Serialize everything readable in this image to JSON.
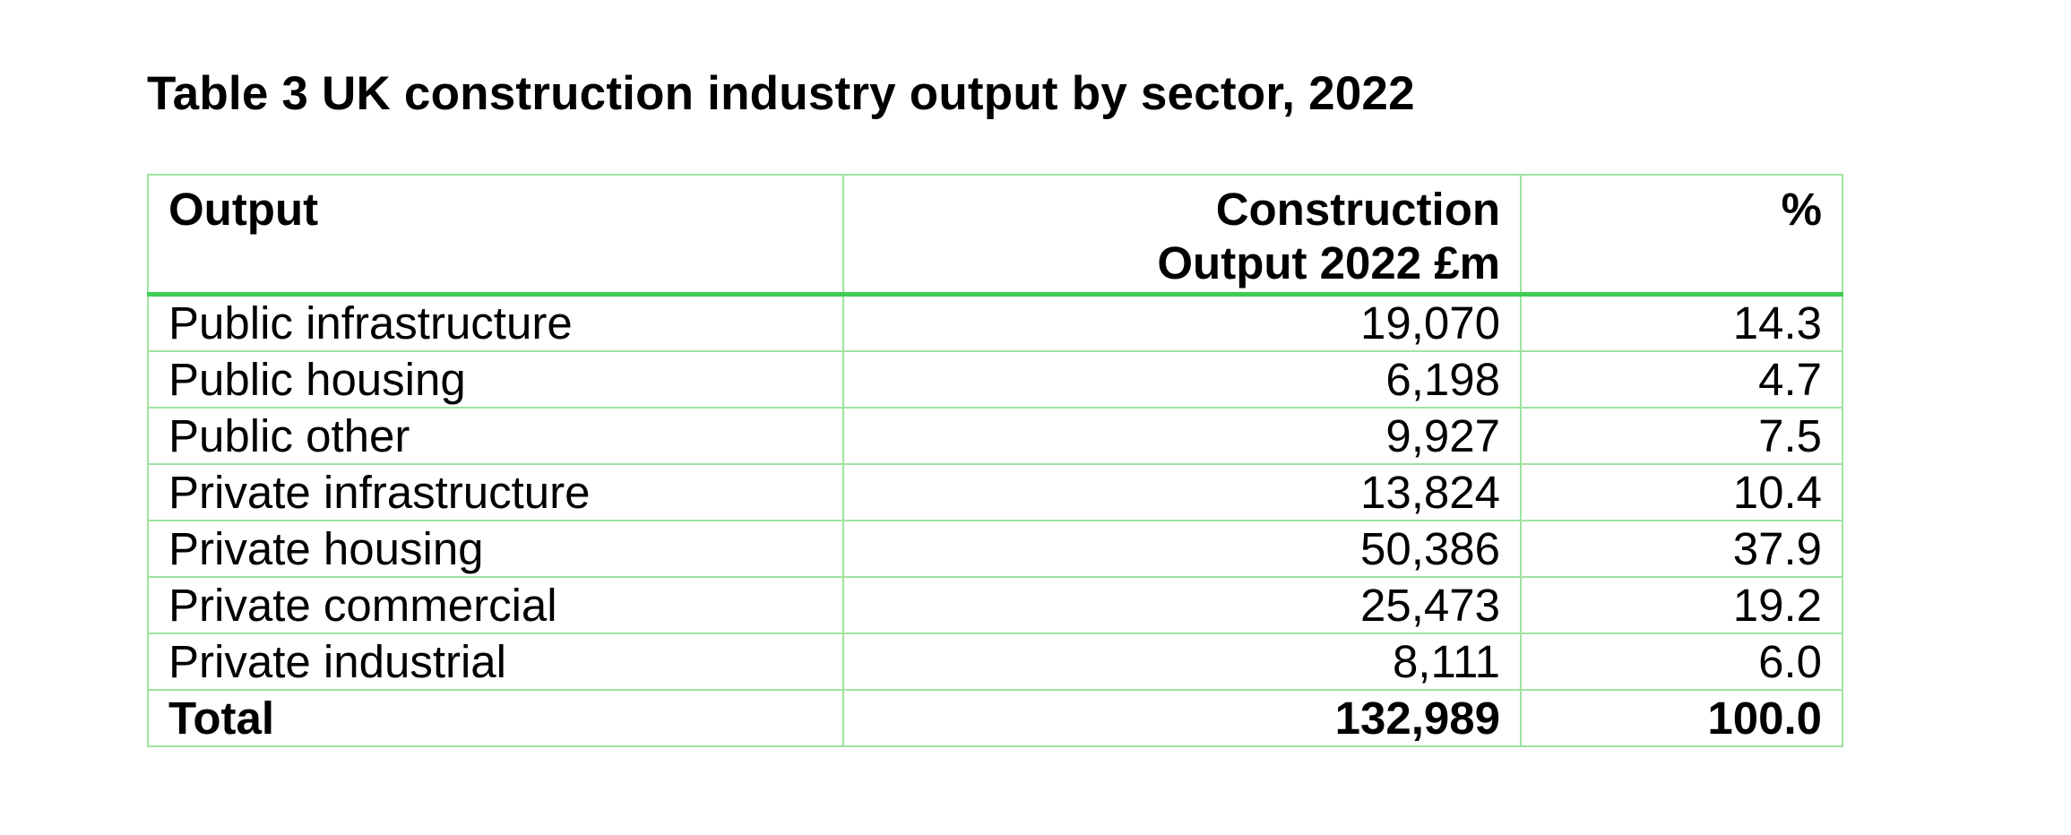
{
  "title": "Table 3 UK construction industry output by sector, 2022",
  "table": {
    "headers": {
      "output": "Output",
      "construction_line1": "Construction",
      "construction_line2": "Output 2022 £m",
      "percent": "%"
    },
    "rows": [
      {
        "label": "Public infrastructure",
        "value": "19,070",
        "percent": "14.3"
      },
      {
        "label": "Public housing",
        "value": "6,198",
        "percent": "4.7"
      },
      {
        "label": "Public other",
        "value": "9,927",
        "percent": "7.5"
      },
      {
        "label": "Private infrastructure",
        "value": "13,824",
        "percent": "10.4"
      },
      {
        "label": "Private housing",
        "value": "50,386",
        "percent": "37.9"
      },
      {
        "label": "Private commercial",
        "value": "25,473",
        "percent": "19.2"
      },
      {
        "label": "Private industrial",
        "value": "8,111",
        "percent": "6.0"
      }
    ],
    "total": {
      "label": "Total",
      "value": "132,989",
      "percent": "100.0"
    }
  },
  "colors": {
    "border": "#9fe39f",
    "header_rule": "#3fcc52"
  }
}
